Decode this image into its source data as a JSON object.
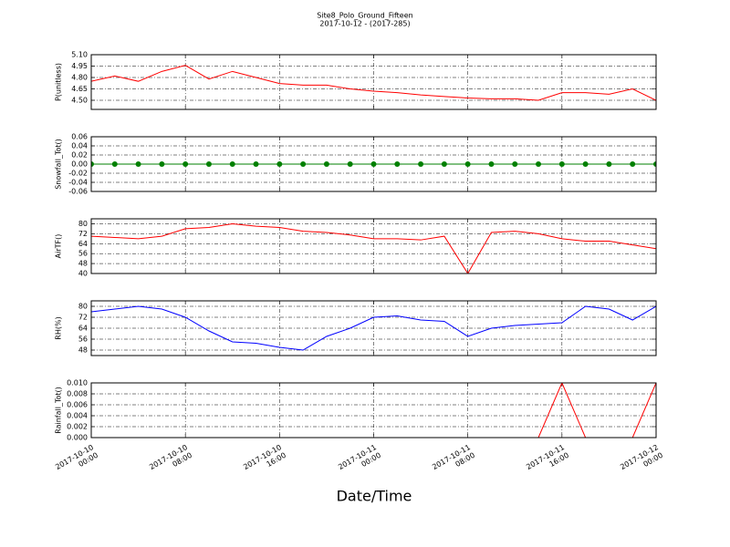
{
  "title": "Site8_Polo_Ground_Fifteen",
  "subtitle": "2017-10-12 - (2017-285)",
  "xlabel": "Date/Time",
  "chart_data": [
    {
      "type": "line",
      "ylabel": "P(unitless)",
      "color": "#ff0000",
      "x": [
        "2017-10-10 00:00",
        "2017-10-10 02:00",
        "2017-10-10 04:00",
        "2017-10-10 06:00",
        "2017-10-10 08:00",
        "2017-10-10 10:00",
        "2017-10-10 12:00",
        "2017-10-10 14:00",
        "2017-10-10 16:00",
        "2017-10-10 18:00",
        "2017-10-10 20:00",
        "2017-10-10 22:00",
        "2017-10-11 00:00",
        "2017-10-11 02:00",
        "2017-10-11 04:00",
        "2017-10-11 06:00",
        "2017-10-11 08:00",
        "2017-10-11 10:00",
        "2017-10-11 12:00",
        "2017-10-11 14:00",
        "2017-10-11 16:00",
        "2017-10-11 18:00",
        "2017-10-11 20:00",
        "2017-10-11 22:00",
        "2017-10-12 00:00"
      ],
      "values": [
        4.75,
        4.82,
        4.75,
        4.88,
        4.96,
        4.78,
        4.88,
        4.8,
        4.72,
        4.7,
        4.7,
        4.65,
        4.62,
        4.6,
        4.57,
        4.55,
        4.53,
        4.52,
        4.52,
        4.5,
        4.6,
        4.6,
        4.58,
        4.65,
        4.5
      ],
      "xlim": [
        "2017-10-10 00:00",
        "2017-10-12 00:00"
      ],
      "ylim": [
        4.38,
        5.1
      ],
      "yticks": [
        {
          "value": 4.5,
          "label": "4.50"
        },
        4.65,
        {
          "value": 4.8,
          "label": "4.80"
        },
        4.95,
        {
          "value": 5.1,
          "label": "5.10"
        }
      ],
      "grid": true
    },
    {
      "type": "line",
      "ylabel": "Snowfall_Tot()",
      "color": "#008000",
      "markers": true,
      "x": [
        "2017-10-10 00:00",
        "2017-10-10 02:00",
        "2017-10-10 04:00",
        "2017-10-10 06:00",
        "2017-10-10 08:00",
        "2017-10-10 10:00",
        "2017-10-10 12:00",
        "2017-10-10 14:00",
        "2017-10-10 16:00",
        "2017-10-10 18:00",
        "2017-10-10 20:00",
        "2017-10-10 22:00",
        "2017-10-11 00:00",
        "2017-10-11 02:00",
        "2017-10-11 04:00",
        "2017-10-11 06:00",
        "2017-10-11 08:00",
        "2017-10-11 10:00",
        "2017-10-11 12:00",
        "2017-10-11 14:00",
        "2017-10-11 16:00",
        "2017-10-11 18:00",
        "2017-10-11 20:00",
        "2017-10-11 22:00",
        "2017-10-12 00:00"
      ],
      "values": [
        0,
        0,
        0,
        0,
        0,
        0,
        0,
        0,
        0,
        0,
        0,
        0,
        0,
        0,
        0,
        0,
        0,
        0,
        0,
        0,
        0,
        0,
        0,
        0,
        0
      ],
      "xlim": [
        "2017-10-10 00:00",
        "2017-10-12 00:00"
      ],
      "ylim": [
        -0.06,
        0.06
      ],
      "yticks": [
        -0.06,
        -0.04,
        -0.02,
        {
          "value": 0,
          "label": "0.00"
        },
        0.02,
        0.04,
        0.06
      ],
      "grid": true
    },
    {
      "type": "line",
      "ylabel": "AirTF()",
      "color": "#ff0000",
      "x": [
        "2017-10-10 00:00",
        "2017-10-10 02:00",
        "2017-10-10 04:00",
        "2017-10-10 06:00",
        "2017-10-10 08:00",
        "2017-10-10 10:00",
        "2017-10-10 12:00",
        "2017-10-10 14:00",
        "2017-10-10 16:00",
        "2017-10-10 18:00",
        "2017-10-10 20:00",
        "2017-10-10 22:00",
        "2017-10-11 00:00",
        "2017-10-11 02:00",
        "2017-10-11 04:00",
        "2017-10-11 06:00",
        "2017-10-11 08:00",
        "2017-10-11 10:00",
        "2017-10-11 12:00",
        "2017-10-11 14:00",
        "2017-10-11 16:00",
        "2017-10-11 18:00",
        "2017-10-11 20:00",
        "2017-10-11 22:00",
        "2017-10-12 00:00"
      ],
      "values": [
        70,
        69,
        68,
        70,
        76,
        77,
        80,
        78,
        77,
        74,
        73,
        71,
        68,
        68,
        67,
        70,
        40,
        73,
        74,
        72,
        68,
        66,
        66,
        63,
        60
      ],
      "xlim": [
        "2017-10-10 00:00",
        "2017-10-12 00:00"
      ],
      "ylim": [
        40,
        84
      ],
      "yticks": [
        40,
        48,
        56,
        64,
        72,
        80
      ],
      "grid": true
    },
    {
      "type": "line",
      "ylabel": "RH(%)",
      "color": "#0000ff",
      "x": [
        "2017-10-10 00:00",
        "2017-10-10 02:00",
        "2017-10-10 04:00",
        "2017-10-10 06:00",
        "2017-10-10 08:00",
        "2017-10-10 10:00",
        "2017-10-10 12:00",
        "2017-10-10 14:00",
        "2017-10-10 16:00",
        "2017-10-10 18:00",
        "2017-10-10 20:00",
        "2017-10-10 22:00",
        "2017-10-11 00:00",
        "2017-10-11 02:00",
        "2017-10-11 04:00",
        "2017-10-11 06:00",
        "2017-10-11 08:00",
        "2017-10-11 10:00",
        "2017-10-11 12:00",
        "2017-10-11 14:00",
        "2017-10-11 16:00",
        "2017-10-11 18:00",
        "2017-10-11 20:00",
        "2017-10-11 22:00",
        "2017-10-12 00:00"
      ],
      "values": [
        76,
        78,
        80,
        78,
        72,
        62,
        54,
        53,
        50,
        48,
        58,
        64,
        72,
        73,
        70,
        69,
        58,
        64,
        66,
        67,
        68,
        80,
        78,
        70,
        80
      ],
      "xlim": [
        "2017-10-10 00:00",
        "2017-10-12 00:00"
      ],
      "ylim": [
        44,
        84
      ],
      "yticks": [
        48,
        56,
        64,
        72,
        80
      ],
      "grid": true
    },
    {
      "type": "line",
      "ylabel": "Rainfall_Tot()",
      "color": "#ff0000",
      "x": [
        "2017-10-10 00:00",
        "2017-10-10 02:00",
        "2017-10-10 04:00",
        "2017-10-10 06:00",
        "2017-10-10 08:00",
        "2017-10-10 10:00",
        "2017-10-10 12:00",
        "2017-10-10 14:00",
        "2017-10-10 16:00",
        "2017-10-10 18:00",
        "2017-10-10 20:00",
        "2017-10-10 22:00",
        "2017-10-11 00:00",
        "2017-10-11 02:00",
        "2017-10-11 04:00",
        "2017-10-11 06:00",
        "2017-10-11 08:00",
        "2017-10-11 10:00",
        "2017-10-11 12:00",
        "2017-10-11 14:00",
        "2017-10-11 16:00",
        "2017-10-11 18:00",
        "2017-10-11 20:00",
        "2017-10-11 22:00",
        "2017-10-12 00:00"
      ],
      "values": [
        0,
        0,
        0,
        0,
        0,
        0,
        0,
        0,
        0,
        0,
        0,
        0,
        0,
        0,
        0,
        0,
        0,
        0,
        0,
        0,
        0.01,
        0,
        0,
        0,
        0.01
      ],
      "xlim": [
        "2017-10-10 00:00",
        "2017-10-12 00:00"
      ],
      "ylim": [
        0,
        0.01
      ],
      "yticks": [
        {
          "value": 0,
          "label": "0.000"
        },
        {
          "value": 0.002,
          "label": "0.002"
        },
        {
          "value": 0.004,
          "label": "0.004"
        },
        {
          "value": 0.006,
          "label": "0.006"
        },
        {
          "value": 0.008,
          "label": "0.008"
        },
        {
          "value": 0.01,
          "label": "0.010"
        }
      ],
      "xticks": [
        {
          "value": "2017-10-10 00:00",
          "label": "2017-10-10\n00:00"
        },
        {
          "value": "2017-10-10 08:00",
          "label": "2017-10-10\n08:00"
        },
        {
          "value": "2017-10-10 16:00",
          "label": "2017-10-10\n16:00"
        },
        {
          "value": "2017-10-11 00:00",
          "label": "2017-10-11\n00:00"
        },
        {
          "value": "2017-10-11 08:00",
          "label": "2017-10-11\n08:00"
        },
        {
          "value": "2017-10-11 16:00",
          "label": "2017-10-11\n16:00"
        },
        {
          "value": "2017-10-12 00:00",
          "label": "2017-10-12\n00:00"
        }
      ],
      "grid": true
    }
  ]
}
